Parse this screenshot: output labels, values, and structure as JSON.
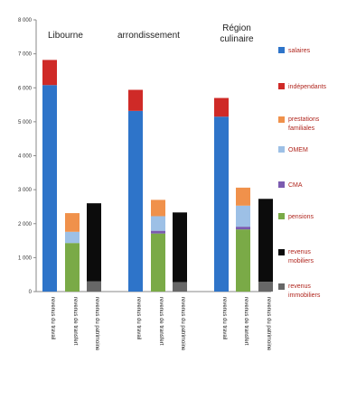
{
  "chart_data": {
    "type": "bar",
    "stacked": true,
    "ylim": [
      0,
      8000
    ],
    "y_ticks": [
      "0",
      "1 000",
      "2 000",
      "3 000",
      "4 000",
      "5 000",
      "6 000",
      "7 000",
      "8 000"
    ],
    "y_tick_values": [
      0,
      1000,
      2000,
      3000,
      4000,
      5000,
      6000,
      7000,
      8000
    ],
    "grid": false,
    "legend_position": "right",
    "groups": [
      {
        "title": "Libourne",
        "categories": [
          "revenus du travail",
          "revenus de transfert",
          "revenus du patrimoine"
        ],
        "stacks": [
          [
            {
              "series": "salaires",
              "value": 6080
            },
            {
              "series": "indépendants",
              "value": 740
            }
          ],
          [
            {
              "series": "pensions",
              "value": 1430
            },
            {
              "series": "OMEM",
              "value": 330
            },
            {
              "series": "prestations familiales",
              "value": 550
            }
          ],
          [
            {
              "series": "revenus immobiliers",
              "value": 300
            },
            {
              "series": "revenus mobiliers",
              "value": 2300
            }
          ]
        ]
      },
      {
        "title": "arrondissement",
        "categories": [
          "revenus du travail",
          "revenus de transfert",
          "revenus du patrimoine"
        ],
        "stacks": [
          [
            {
              "series": "salaires",
              "value": 5320
            },
            {
              "series": "indépendants",
              "value": 620
            }
          ],
          [
            {
              "series": "pensions",
              "value": 1710
            },
            {
              "series": "CMA",
              "value": 80
            },
            {
              "series": "OMEM",
              "value": 430
            },
            {
              "series": "prestations familiales",
              "value": 480
            }
          ],
          [
            {
              "series": "revenus immobiliers",
              "value": 280
            },
            {
              "series": "revenus mobiliers",
              "value": 2050
            }
          ]
        ]
      },
      {
        "title": "Région culinaire",
        "categories": [
          "revenus du travail",
          "revenus de transfert",
          "revenus du patrimoine"
        ],
        "stacks": [
          [
            {
              "series": "salaires",
              "value": 5150
            },
            {
              "series": "indépendants",
              "value": 550
            }
          ],
          [
            {
              "series": "pensions",
              "value": 1830
            },
            {
              "series": "CMA",
              "value": 80
            },
            {
              "series": "OMEM",
              "value": 620
            },
            {
              "series": "prestations familiales",
              "value": 530
            }
          ],
          [
            {
              "series": "revenus immobiliers",
              "value": 290
            },
            {
              "series": "revenus mobiliers",
              "value": 2440
            }
          ]
        ]
      }
    ],
    "series": [
      {
        "name": "salaires",
        "color": "#2e74c9"
      },
      {
        "name": "indépendants",
        "color": "#cf2a27"
      },
      {
        "name": "prestations familiales",
        "color": "#f0914b"
      },
      {
        "name": "OMEM",
        "color": "#9dc0e6"
      },
      {
        "name": "CMA",
        "color": "#7b5bb0"
      },
      {
        "name": "pensions",
        "color": "#7aaa47"
      },
      {
        "name": "revenus mobiliers",
        "color": "#0c0c0c"
      },
      {
        "name": "revenus immobiliers",
        "color": "#676767"
      }
    ]
  }
}
